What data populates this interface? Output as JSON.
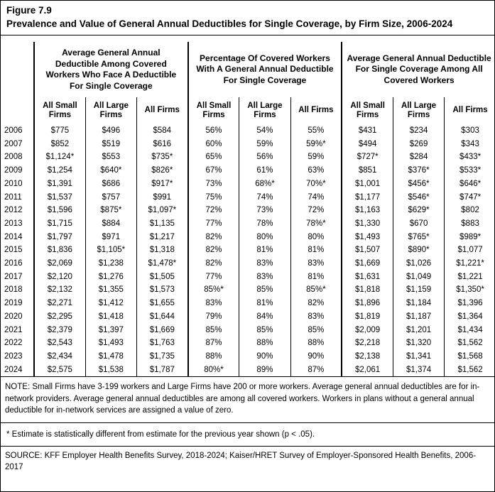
{
  "figure": {
    "label": "Figure 7.9",
    "title": "Prevalence and Value of General Annual Deductibles for Single Coverage, by Firm Size, 2006-2024"
  },
  "colors": {
    "text": "#000000",
    "background": "#ffffff",
    "border": "#000000"
  },
  "chart_data": {
    "type": "table",
    "title": "Prevalence and Value of General Annual Deductibles for Single Coverage, by Firm Size, 2006-2024",
    "column_groups": [
      {
        "header": "Average General Annual Deductible Among Covered Workers Who Face A Deductible For Single Coverage",
        "subcolumns": [
          "All Small Firms",
          "All Large Firms",
          "All Firms"
        ]
      },
      {
        "header": "Percentage Of Covered Workers With A General Annual Deductible For Single Coverage",
        "subcolumns": [
          "All Small Firms",
          "All Large Firms",
          "All Firms"
        ]
      },
      {
        "header": "Average General Annual Deductible For Single Coverage Among All Covered Workers",
        "subcolumns": [
          "All Small Firms",
          "All Large Firms",
          "All Firms"
        ]
      }
    ],
    "rows": [
      {
        "year": "2006",
        "cells": [
          "$775",
          "$496",
          "$584",
          "56%",
          "54%",
          "55%",
          "$431",
          "$234",
          "$303"
        ]
      },
      {
        "year": "2007",
        "cells": [
          "$852",
          "$519",
          "$616",
          "60%",
          "59%",
          "59%*",
          "$494",
          "$269",
          "$343"
        ]
      },
      {
        "year": "2008",
        "cells": [
          "$1,124*",
          "$553",
          "$735*",
          "65%",
          "56%",
          "59%",
          "$727*",
          "$284",
          "$433*"
        ]
      },
      {
        "year": "2009",
        "cells": [
          "$1,254",
          "$640*",
          "$826*",
          "67%",
          "61%",
          "63%",
          "$851",
          "$376*",
          "$533*"
        ]
      },
      {
        "year": "2010",
        "cells": [
          "$1,391",
          "$686",
          "$917*",
          "73%",
          "68%*",
          "70%*",
          "$1,001",
          "$456*",
          "$646*"
        ]
      },
      {
        "year": "2011",
        "cells": [
          "$1,537",
          "$757",
          "$991",
          "75%",
          "74%",
          "74%",
          "$1,177",
          "$546*",
          "$747*"
        ]
      },
      {
        "year": "2012",
        "cells": [
          "$1,596",
          "$875*",
          "$1,097*",
          "72%",
          "73%",
          "72%",
          "$1,163",
          "$629*",
          "$802"
        ]
      },
      {
        "year": "2013",
        "cells": [
          "$1,715",
          "$884",
          "$1,135",
          "77%",
          "78%",
          "78%*",
          "$1,330",
          "$670",
          "$883"
        ]
      },
      {
        "year": "2014",
        "cells": [
          "$1,797",
          "$971",
          "$1,217",
          "82%",
          "80%",
          "80%",
          "$1,493",
          "$765*",
          "$989*"
        ]
      },
      {
        "year": "2015",
        "cells": [
          "$1,836",
          "$1,105*",
          "$1,318",
          "82%",
          "81%",
          "81%",
          "$1,507",
          "$890*",
          "$1,077"
        ]
      },
      {
        "year": "2016",
        "cells": [
          "$2,069",
          "$1,238",
          "$1,478*",
          "82%",
          "83%",
          "83%",
          "$1,669",
          "$1,026",
          "$1,221*"
        ]
      },
      {
        "year": "2017",
        "cells": [
          "$2,120",
          "$1,276",
          "$1,505",
          "77%",
          "83%",
          "81%",
          "$1,631",
          "$1,049",
          "$1,221"
        ]
      },
      {
        "year": "2018",
        "cells": [
          "$2,132",
          "$1,355",
          "$1,573",
          "85%*",
          "85%",
          "85%*",
          "$1,818",
          "$1,159",
          "$1,350*"
        ]
      },
      {
        "year": "2019",
        "cells": [
          "$2,271",
          "$1,412",
          "$1,655",
          "83%",
          "81%",
          "82%",
          "$1,896",
          "$1,184",
          "$1,396"
        ]
      },
      {
        "year": "2020",
        "cells": [
          "$2,295",
          "$1,418",
          "$1,644",
          "79%",
          "84%",
          "83%",
          "$1,819",
          "$1,187",
          "$1,364"
        ]
      },
      {
        "year": "2021",
        "cells": [
          "$2,379",
          "$1,397",
          "$1,669",
          "85%",
          "85%",
          "85%",
          "$2,009",
          "$1,201",
          "$1,434"
        ]
      },
      {
        "year": "2022",
        "cells": [
          "$2,543",
          "$1,493",
          "$1,763",
          "87%",
          "88%",
          "88%",
          "$2,218",
          "$1,320",
          "$1,562"
        ]
      },
      {
        "year": "2023",
        "cells": [
          "$2,434",
          "$1,478",
          "$1,735",
          "88%",
          "90%",
          "90%",
          "$2,138",
          "$1,341",
          "$1,568"
        ]
      },
      {
        "year": "2024",
        "cells": [
          "$2,575",
          "$1,538",
          "$1,787",
          "80%*",
          "89%",
          "87%",
          "$2,061",
          "$1,374",
          "$1,562"
        ]
      }
    ]
  },
  "notes": {
    "note": "NOTE: Small Firms have 3-199 workers and Large Firms have 200 or more workers. Average general annual deductibles are for in-network providers. Average general annual deductibles are among all covered workers. Workers in plans without a general annual deductible for in-network services are assigned a value of zero.",
    "footnote": "* Estimate is statistically different from estimate for the previous year shown (p < .05).",
    "source": "SOURCE: KFF Employer Health Benefits Survey, 2018-2024; Kaiser/HRET Survey of Employer-Sponsored Health Benefits, 2006-2017"
  }
}
